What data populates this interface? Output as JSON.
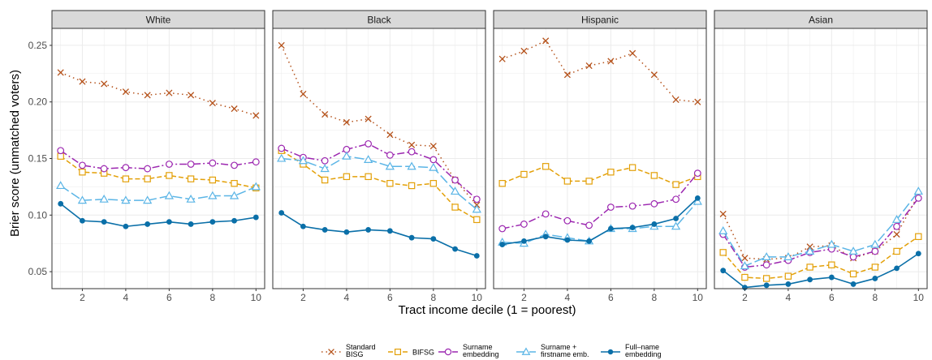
{
  "chart_data": {
    "type": "line",
    "xlabel": "Tract income decile (1 = poorest)",
    "ylabel": "Brier score (unmatched voters)",
    "ylim": [
      0.035,
      0.265
    ],
    "xlim": [
      0.6,
      10.4
    ],
    "yticks": [
      0.05,
      0.1,
      0.15,
      0.2,
      0.25
    ],
    "ytick_labels": [
      "0.05",
      "0.10",
      "0.15",
      "0.20",
      "0.25"
    ],
    "xticks": [
      2,
      4,
      6,
      8,
      10
    ],
    "xtick_labels": [
      "2",
      "4",
      "6",
      "8",
      "10"
    ],
    "x": [
      1,
      2,
      3,
      4,
      5,
      6,
      7,
      8,
      9,
      10
    ],
    "grid": true,
    "legend_position": "bottom",
    "series_styles": [
      {
        "legend_lines": [
          "Standard",
          "BISG"
        ],
        "color": "#b5521b",
        "marker": "x",
        "dash": "1.5,4"
      },
      {
        "legend_lines": [
          "BIFSG"
        ],
        "color": "#e3a008",
        "marker": "square",
        "dash": "6,3"
      },
      {
        "legend_lines": [
          "Surname",
          "embedding"
        ],
        "color": "#9c27b0",
        "marker": "circle-open",
        "dash": "9,3,2,3"
      },
      {
        "legend_lines": [
          "Surname +",
          "firstname emb."
        ],
        "color": "#5bb5e6",
        "marker": "triangle",
        "dash": "12,4"
      },
      {
        "legend_lines": [
          "Full–name",
          "embedding"
        ],
        "color": "#0a6fa8",
        "marker": "circle-filled",
        "dash": ""
      }
    ],
    "panels": [
      {
        "title": "White",
        "series": [
          [
            0.226,
            0.218,
            0.216,
            0.209,
            0.206,
            0.208,
            0.206,
            0.199,
            0.194,
            0.188
          ],
          [
            0.152,
            0.138,
            0.137,
            0.132,
            0.132,
            0.135,
            0.132,
            0.131,
            0.128,
            0.124
          ],
          [
            0.157,
            0.144,
            0.141,
            0.142,
            0.141,
            0.145,
            0.145,
            0.146,
            0.144,
            0.147
          ],
          [
            0.126,
            0.113,
            0.114,
            0.113,
            0.113,
            0.117,
            0.114,
            0.117,
            0.117,
            0.125
          ],
          [
            0.11,
            0.095,
            0.094,
            0.09,
            0.092,
            0.094,
            0.092,
            0.094,
            0.095,
            0.098
          ]
        ]
      },
      {
        "title": "Black",
        "series": [
          [
            0.25,
            0.207,
            0.189,
            0.182,
            0.185,
            0.171,
            0.162,
            0.161,
            0.131,
            0.109
          ],
          [
            0.157,
            0.145,
            0.131,
            0.134,
            0.134,
            0.128,
            0.126,
            0.128,
            0.107,
            0.096
          ],
          [
            0.159,
            0.151,
            0.148,
            0.158,
            0.163,
            0.153,
            0.156,
            0.149,
            0.131,
            0.114
          ],
          [
            0.15,
            0.148,
            0.141,
            0.152,
            0.149,
            0.143,
            0.143,
            0.142,
            0.121,
            0.105
          ],
          [
            0.102,
            0.09,
            0.087,
            0.085,
            0.087,
            0.086,
            0.08,
            0.079,
            0.07,
            0.064
          ]
        ]
      },
      {
        "title": "Hispanic",
        "series": [
          [
            0.238,
            0.245,
            0.254,
            0.224,
            0.232,
            0.236,
            0.243,
            0.224,
            0.202,
            0.2
          ],
          [
            0.128,
            0.136,
            0.143,
            0.13,
            0.13,
            0.138,
            0.142,
            0.135,
            0.127,
            0.134
          ],
          [
            0.088,
            0.092,
            0.101,
            0.095,
            0.091,
            0.107,
            0.108,
            0.11,
            0.114,
            0.137
          ],
          [
            0.076,
            0.075,
            0.083,
            0.08,
            0.077,
            0.088,
            0.088,
            0.09,
            0.09,
            0.112
          ],
          [
            0.074,
            0.077,
            0.081,
            0.078,
            0.077,
            0.088,
            0.089,
            0.092,
            0.097,
            0.115
          ]
        ]
      },
      {
        "title": "Asian",
        "series": [
          [
            0.101,
            0.062,
            0.061,
            0.062,
            0.072,
            0.073,
            0.062,
            0.068,
            0.083,
            0.118
          ],
          [
            0.067,
            0.045,
            0.044,
            0.046,
            0.054,
            0.056,
            0.048,
            0.054,
            0.068,
            0.081
          ],
          [
            0.083,
            0.054,
            0.056,
            0.06,
            0.067,
            0.07,
            0.063,
            0.068,
            0.09,
            0.115
          ],
          [
            0.086,
            0.055,
            0.063,
            0.063,
            0.068,
            0.074,
            0.068,
            0.074,
            0.096,
            0.121
          ],
          [
            0.051,
            0.036,
            0.038,
            0.039,
            0.043,
            0.045,
            0.039,
            0.044,
            0.053,
            0.066
          ]
        ]
      }
    ]
  }
}
